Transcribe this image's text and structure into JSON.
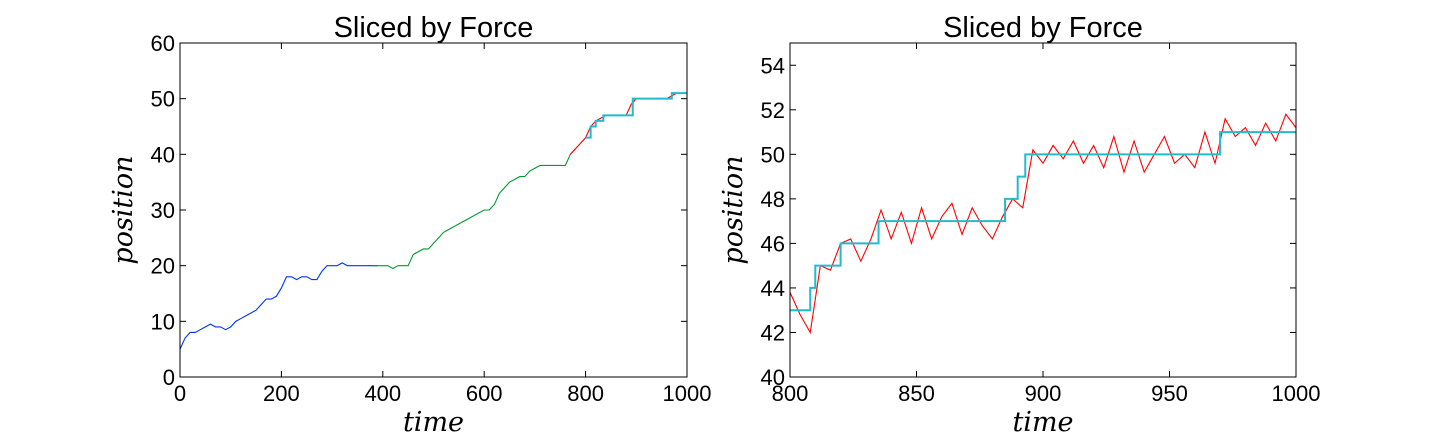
{
  "chart_data": [
    {
      "type": "line",
      "title": "Sliced by Force",
      "xlabel": "time",
      "ylabel": "position",
      "xlim": [
        0,
        1000
      ],
      "ylim": [
        0,
        60
      ],
      "xticks": [
        0,
        200,
        400,
        600,
        800,
        1000
      ],
      "yticks": [
        0,
        10,
        20,
        30,
        40,
        50,
        60
      ],
      "series": [
        {
          "color": "#0033ff",
          "x": [
            0,
            10,
            20,
            30,
            40,
            50,
            60,
            70,
            80,
            90,
            100,
            110,
            120,
            130,
            140,
            150,
            160,
            170,
            180,
            190,
            200,
            210,
            220,
            230,
            240,
            250,
            260,
            270,
            280,
            290,
            300,
            310,
            320,
            330,
            340,
            350,
            360,
            370,
            380,
            390
          ],
          "values": [
            5,
            7,
            8,
            8,
            8.5,
            9,
            9.5,
            9,
            9,
            8.5,
            9,
            10,
            10.5,
            11,
            11.5,
            12,
            13,
            14,
            14,
            14.5,
            16,
            18,
            18,
            17.5,
            18,
            18,
            17.5,
            17.5,
            19,
            20,
            20,
            20,
            20.5,
            20,
            20,
            20,
            20,
            20,
            20,
            20
          ]
        },
        {
          "color": "#009933",
          "x": [
            380,
            390,
            400,
            410,
            420,
            430,
            440,
            450,
            460,
            470,
            480,
            490,
            500,
            510,
            520,
            530,
            540,
            550,
            560,
            570,
            580,
            590,
            600,
            610,
            620,
            630,
            640,
            650,
            660,
            670,
            680,
            690,
            700,
            710,
            720,
            730,
            740,
            750,
            760,
            770,
            780
          ],
          "values": [
            20,
            20,
            20,
            20,
            19.5,
            20,
            20,
            20,
            22,
            22.5,
            23,
            23,
            24,
            25,
            26,
            26.5,
            27,
            27.5,
            28,
            28.5,
            29,
            29.5,
            30,
            30,
            31,
            33,
            34,
            35,
            35.5,
            36,
            36,
            37,
            37.5,
            38,
            38,
            38,
            38,
            38,
            38,
            40,
            41
          ]
        },
        {
          "color": "#ff0000",
          "x": [
            770,
            780,
            790,
            800,
            810,
            820,
            830,
            840,
            850,
            860,
            870,
            880,
            890,
            900,
            910,
            920,
            930,
            940,
            950,
            960,
            970,
            980,
            990,
            1000
          ],
          "values": [
            40,
            41,
            42,
            43,
            45,
            46,
            46.5,
            47,
            47,
            47,
            47,
            47,
            49,
            50,
            50,
            50,
            50,
            50,
            50,
            50,
            50.5,
            51,
            51,
            51
          ]
        },
        {
          "color": "#22bbcc",
          "drawstyle": "steps-post",
          "x": [
            800,
            810,
            820,
            835,
            893,
            970,
            1000
          ],
          "values": [
            43,
            45,
            46,
            47,
            50,
            51,
            51
          ]
        }
      ]
    },
    {
      "type": "line",
      "title": "Sliced by Force",
      "xlabel": "time",
      "ylabel": "position",
      "xlim": [
        800,
        1000
      ],
      "ylim": [
        40,
        55
      ],
      "xticks": [
        800,
        850,
        900,
        950,
        1000
      ],
      "yticks": [
        40,
        42,
        44,
        46,
        48,
        50,
        52,
        54
      ],
      "series": [
        {
          "color": "#ff0000",
          "x": [
            800,
            804,
            808,
            812,
            816,
            820,
            824,
            828,
            832,
            836,
            840,
            844,
            848,
            852,
            856,
            860,
            864,
            868,
            872,
            876,
            880,
            884,
            888,
            892,
            896,
            900,
            904,
            908,
            912,
            916,
            920,
            924,
            928,
            932,
            936,
            940,
            944,
            948,
            952,
            956,
            960,
            964,
            968,
            972,
            976,
            980,
            984,
            988,
            992,
            996,
            1000
          ],
          "values": [
            43.8,
            42.8,
            42.0,
            45.0,
            44.8,
            46.0,
            46.2,
            45.2,
            46.2,
            47.5,
            46.2,
            47.4,
            46.0,
            47.6,
            46.2,
            47.2,
            47.8,
            46.4,
            47.6,
            46.8,
            46.2,
            47.2,
            48.0,
            47.6,
            50.2,
            49.6,
            50.4,
            49.8,
            50.6,
            49.6,
            50.4,
            49.4,
            50.8,
            49.2,
            50.6,
            49.2,
            50.0,
            50.8,
            49.6,
            50.0,
            49.4,
            51.0,
            49.6,
            51.6,
            50.8,
            51.2,
            50.4,
            51.4,
            50.6,
            51.8,
            51.2
          ]
        },
        {
          "color": "#22bbcc",
          "drawstyle": "steps-post",
          "x": [
            800,
            808,
            810,
            813,
            820,
            835,
            885,
            890,
            893,
            970,
            1000
          ],
          "values": [
            43,
            44,
            45,
            45,
            46,
            47,
            48,
            49,
            50,
            51,
            51
          ]
        }
      ]
    }
  ]
}
